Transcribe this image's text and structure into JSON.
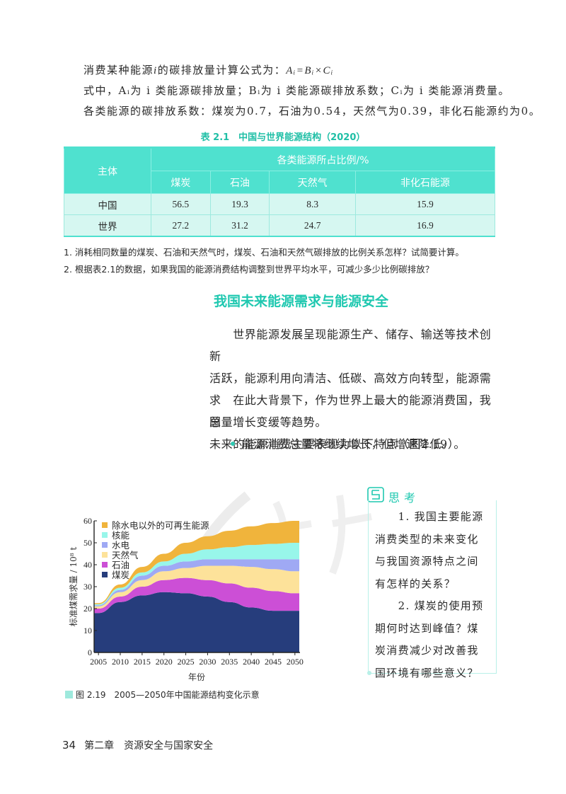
{
  "formula": {
    "line1_prefix": "消费某种能源",
    "line1_var": "i",
    "line1_mid": "的碳排放量计算公式为：",
    "line1_formula": "Aᵢ=Bᵢ×Cᵢ",
    "line2": "式中，Aᵢ为 i 类能源碳排放量；Bᵢ为 i 类能源碳排放系数；Cᵢ为 i 类能源消费量。",
    "line3": "各类能源的碳排放系数：煤炭为0.7，石油为0.54，天然气为0.39，非化石能源约为0。"
  },
  "table": {
    "title": "表 2.1　中国与世界能源结构（2020）",
    "header_subject": "主体",
    "header_group": "各类能源所占比例/%",
    "columns": [
      "煤炭",
      "石油",
      "天然气",
      "非化石能源"
    ],
    "rows": [
      {
        "label": "中国",
        "values": [
          "56.5",
          "19.3",
          "8.3",
          "15.9"
        ]
      },
      {
        "label": "世界",
        "values": [
          "27.2",
          "31.2",
          "24.7",
          "16.9"
        ]
      }
    ]
  },
  "questions": [
    "1. 消耗相同数量的煤炭、石油和天然气时，煤炭、石油和天然气碳排放的比例关系怎样？试简要计算。",
    "2. 根据表2.1的数据，如果我国的能源消费结构调整到世界平均水平，可减少多少比例碳排放？"
  ],
  "section": {
    "title": "我国未来能源需求与能源安全",
    "para1_lines": [
      "　　世界能源发展呈现能源生产、储存、输送等技术创新",
      "活跃，能源利用向清洁、低碳、高效方向转型，能源需求",
      "总量增长变缓等趋势。"
    ],
    "para2_lines": [
      "　　在此大背景下，作为世界上最大的能源消费国，我国",
      "未来的能源消费主要表现为以下特点（图2.19）。"
    ],
    "bullet": "能源消费总量将继续增长，但增速降低。"
  },
  "think": {
    "title": "思考",
    "lines": [
      "　　1. 我国主要能源",
      "消费类型的未来变化",
      "与我国资源特点之间",
      "有怎样的关系？",
      "　　2. 煤炭的使用预",
      "期何时达到峰值？煤",
      "炭消费减少对改善我",
      "国环境有哪些意义？"
    ]
  },
  "figure": {
    "caption": "图 2.19　2005—2050年中国能源结构变化示意"
  },
  "footer": {
    "page_number": "34",
    "chapter": "第二章　资源安全与国家安全"
  },
  "colors": {
    "accent": "#1fc8b0",
    "table_header": "#4fe1cf",
    "table_row": "#d6f7f1",
    "coal": "#263d7c",
    "oil": "#cc4fd6",
    "gas": "#fde29a",
    "hydro": "#9fa9f4",
    "nuclear": "#98f6ea",
    "renewable": "#f0b43c"
  },
  "chart_data": {
    "type": "area",
    "stacked": true,
    "title": "2005—2050年中国能源结构变化示意",
    "xlabel": "年份",
    "ylabel": "标准煤需求量 / 10⁸ t",
    "x": [
      2005,
      2010,
      2015,
      2020,
      2025,
      2030,
      2035,
      2040,
      2045,
      2050
    ],
    "xticks": [
      "2005",
      "2010",
      "2015",
      "2020",
      "2025",
      "2030",
      "2035",
      "2040",
      "2045",
      "2050"
    ],
    "yticks": [
      0,
      10,
      20,
      30,
      40,
      50,
      60
    ],
    "ylim": [
      0,
      60
    ],
    "grid": false,
    "legend_position": "top-left",
    "series": [
      {
        "name": "煤炭",
        "color": "#263d7c",
        "values": [
          18,
          23,
          26,
          27.5,
          27,
          25.5,
          23,
          20.5,
          19,
          19
        ]
      },
      {
        "name": "石油",
        "color": "#cc4fd6",
        "values": [
          2,
          2.5,
          4,
          5.5,
          7,
          7.5,
          8.5,
          9,
          9,
          8
        ]
      },
      {
        "name": "天然气",
        "color": "#fde29a",
        "values": [
          1,
          2,
          3,
          4,
          4.5,
          6.5,
          8,
          9.5,
          10,
          10
        ]
      },
      {
        "name": "水电",
        "color": "#9fa9f4",
        "values": [
          0.5,
          1,
          2,
          2.5,
          3,
          3,
          3,
          3.5,
          4.5,
          5.5
        ]
      },
      {
        "name": "核能",
        "color": "#98f6ea",
        "values": [
          0.5,
          1,
          1.5,
          2,
          3.5,
          4.5,
          5.5,
          6.5,
          7,
          7.5
        ]
      },
      {
        "name": "除水电以外的可再生能源",
        "color": "#f0b43c",
        "values": [
          0.5,
          1.5,
          2.5,
          3.5,
          5,
          6,
          7.5,
          8.5,
          9.5,
          10
        ]
      }
    ],
    "legend": [
      "除水电以外的可再生能源",
      "核能",
      "水电",
      "天然气",
      "石油",
      "煤炭"
    ]
  }
}
